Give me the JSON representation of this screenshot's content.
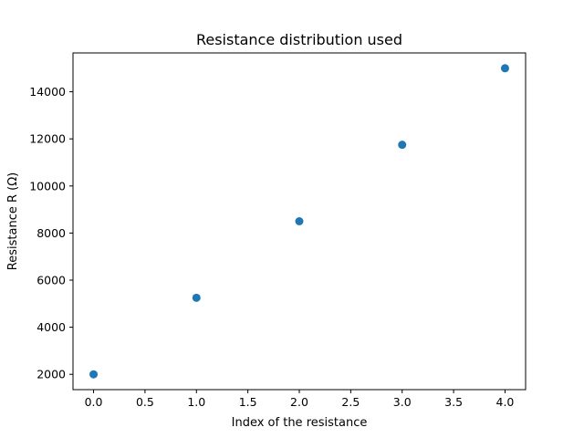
{
  "chart_data": {
    "type": "scatter",
    "title": "Resistance distribution used",
    "xlabel": "Index of the resistance",
    "ylabel": "Resistance R (Ω)",
    "series": [
      {
        "x": [
          0,
          1,
          2,
          3,
          4
        ],
        "y": [
          2000,
          5250,
          8500,
          11750,
          15000
        ]
      }
    ],
    "xlim": [
      -0.2,
      4.2
    ],
    "ylim": [
      1350,
      15650
    ],
    "xticks": [
      0.0,
      0.5,
      1.0,
      1.5,
      2.0,
      2.5,
      3.0,
      3.5,
      4.0
    ],
    "xtick_labels": [
      "0.0",
      "0.5",
      "1.0",
      "1.5",
      "2.0",
      "2.5",
      "3.0",
      "3.5",
      "4.0"
    ],
    "yticks": [
      2000,
      4000,
      6000,
      8000,
      10000,
      12000,
      14000
    ],
    "ytick_labels": [
      "2000",
      "4000",
      "6000",
      "8000",
      "10000",
      "12000",
      "14000"
    ],
    "grid": false,
    "colors": {
      "marker": "#1f77b4",
      "axes": "#000000",
      "background": "#ffffff"
    }
  }
}
